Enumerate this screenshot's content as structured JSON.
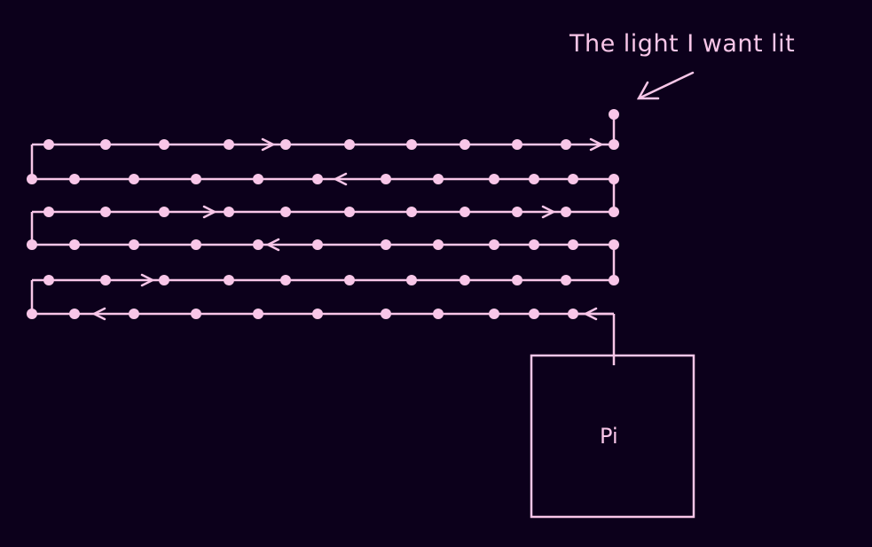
{
  "annotation": {
    "text": "The light I want lit"
  },
  "controller": {
    "label": "Pi"
  },
  "colors": {
    "background": "#0c001b",
    "stroke": "#f8c6e8"
  },
  "strip": {
    "rows": 6,
    "serpentine": true,
    "direction_bottom_row": "right-to-left"
  }
}
